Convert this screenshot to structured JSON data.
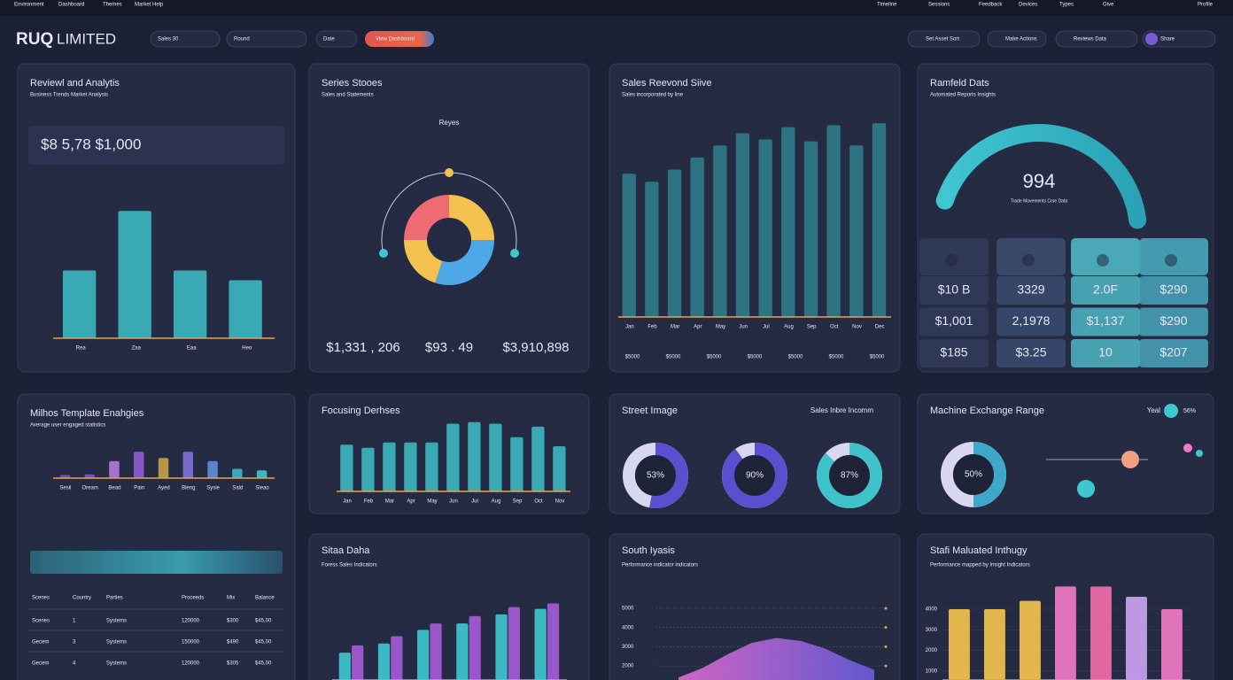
{
  "topbar": {
    "menu": [
      "Environment",
      "Dashboard",
      "Themes",
      "Market Help"
    ],
    "tools": [
      "Timeline",
      "Sessions",
      "Feedback",
      "Devices",
      "Types",
      "Give",
      "Profile"
    ]
  },
  "header": {
    "logo_mark": "RUQ",
    "logo_text": "LIMITED",
    "filters": [
      "Sales 30",
      "Round",
      "Date"
    ],
    "button": "View Dashboard",
    "actions": [
      "Set Asset Sort",
      "Make Actions",
      "Reviews Data",
      "Share"
    ]
  },
  "panels": [
    {
      "title": "Reviewl and Analytis",
      "subtitle": "Business Trends Market Analysis",
      "kpi": "$8 5,78 $1,000",
      "chart": {
        "type": "bar",
        "categories": [
          "Rea",
          "Zaa",
          "Eaa",
          "Heo"
        ],
        "values": [
          42,
          79,
          42,
          36
        ],
        "ylim": [
          0,
          100
        ],
        "color": "#3bb4bd"
      }
    },
    {
      "title": "Series Stooes",
      "subtitle": "Sales and Statements",
      "kpis": [
        "$1,331 , 206",
        "$93 . 49",
        "$3,910,898"
      ],
      "chart": {
        "type": "donut",
        "label": "Reyes",
        "values": [
          25,
          30,
          20,
          25
        ],
        "colors": [
          "#f2c14e",
          "#4ea8e8",
          "#f2c14e",
          "#ef6b73"
        ]
      }
    },
    {
      "title": "Sales Reevond Siive",
      "subtitle": "Sales incorporated by line",
      "footer": [
        "$5000",
        "$5000",
        "$5000",
        "$5000",
        "$5000",
        "$5000",
        "$5000"
      ],
      "chart": {
        "type": "bar",
        "categories": [
          "Jan",
          "Feb",
          "Mar",
          "Apr",
          "May",
          "Jun",
          "Jul",
          "Aug",
          "Sep",
          "Oct",
          "Nov",
          "Dec"
        ],
        "values": [
          71,
          67,
          73,
          79,
          85,
          91,
          88,
          94,
          87,
          95,
          85,
          96
        ],
        "ylim": [
          0,
          100
        ],
        "color": "#2e7a88"
      }
    },
    {
      "title": "Ramfeld Dats",
      "subtitle": "Automated Reports Insights",
      "kpi": "994",
      "caption": "Trade Movements Core Data",
      "tiles": [
        "$10 B",
        "3329",
        "2.0F",
        "$290",
        "$1,001",
        "2,1978",
        "$1,137",
        "$290",
        "$185",
        "$3.25",
        "10",
        "$207"
      ]
    },
    {
      "title": "Milhos Template Enahgies",
      "subtitle": "Average user engaged statistics",
      "chart": {
        "type": "bar",
        "categories": [
          "Sesil",
          "Oream",
          "Bead",
          "Pain",
          "Ayed",
          "Bleng",
          "Sysie",
          "Sald",
          "Sleao"
        ],
        "values": [
          10,
          12,
          55,
          85,
          65,
          85,
          55,
          30,
          25
        ],
        "colors": [
          "#7a4fb8",
          "#8a4fc0",
          "#b07ad8",
          "#8f5bd1",
          "#c2a04a",
          "#7f6fd8",
          "#5b8fd6",
          "#3fb0c8",
          "#3fc6cf"
        ],
        "ylim": [
          0,
          100
        ]
      },
      "table": {
        "header": [
          "Scenes",
          "Country",
          "Parties",
          "Proceeds",
          "Mix",
          "Balance"
        ],
        "rows": [
          [
            "Scenes",
            "1",
            "Systems",
            "120000",
            "$300",
            "$45,00"
          ],
          [
            "Gecem",
            "3",
            "Systems",
            "150000",
            "$490",
            "$45,00"
          ],
          [
            "Gecem",
            "4",
            "Systems",
            "120000",
            "$305",
            "$45,00"
          ]
        ]
      }
    },
    {
      "title": "Focusing Derhses",
      "chart": {
        "type": "bar",
        "categories": [
          "Jan",
          "Feb",
          "Mar",
          "Apr",
          "May",
          "Jun",
          "Jul",
          "Aug",
          "Sep",
          "Oct",
          "Nov"
        ],
        "values": [
          62,
          58,
          65,
          65,
          65,
          90,
          92,
          90,
          72,
          86,
          60
        ],
        "ylim": [
          0,
          100
        ],
        "color": "#3bb4bd"
      }
    },
    {
      "title": "Street Image",
      "extra": "Sales Inbre Incomm",
      "chart": {
        "type": "rings",
        "values": [
          53,
          90,
          87
        ],
        "value_labels": [
          "53%",
          "90%",
          "87%"
        ],
        "colors": [
          "#5b4fcf",
          "#5b4fcf",
          "#3fc3c8"
        ]
      }
    },
    {
      "title": "Machine Exchange Range",
      "extra": "Yeal",
      "extra_value": "56%",
      "chart": {
        "type": "rings",
        "values": [
          50
        ],
        "value_labels": [
          "50%"
        ],
        "colors": [
          "#3fa8c8"
        ]
      }
    },
    {
      "title": "Sitaa Daha",
      "subtitle": "Foress Sales Indicators",
      "chart": {
        "type": "bar",
        "categories": [
          null,
          null,
          null,
          null,
          null,
          null
        ],
        "series": [
          {
            "color": "#3fc6cf",
            "values": [
              30,
              40,
              55,
              62,
              72,
              78
            ]
          },
          {
            "color": "#a45bd6",
            "values": [
              38,
              48,
              62,
              70,
              80,
              84
            ]
          }
        ],
        "ylim": [
          0,
          100
        ]
      }
    },
    {
      "title": "South Iyasis",
      "subtitle": "Performance indicator indicators",
      "chart": {
        "type": "area",
        "values": [
          1400,
          1900,
          2600,
          3200,
          3450,
          3300,
          2900,
          2300,
          1800
        ],
        "ylim": [
          1270,
          6240
        ],
        "yticks": [
          5000,
          4000,
          3000,
          2000
        ],
        "color": "#9b5de5"
      }
    },
    {
      "title": "Stafi Maluated Inthugy",
      "subtitle": "Performance mapped by Insight Indicators",
      "chart": {
        "type": "bar",
        "categories": [
          null,
          null,
          null,
          null,
          null,
          null,
          null
        ],
        "values": [
          4000,
          4000,
          4400,
          5100,
          5100,
          4600,
          4000
        ],
        "colors": [
          "#f2c14e",
          "#f2c14e",
          "#f2c14e",
          "#f07bc6",
          "#f06aa8",
          "#c9a2f0",
          "#f07bc6"
        ],
        "ylim": [
          570,
          5200
        ],
        "yticks": [
          4000,
          3000,
          2000,
          1000
        ]
      }
    }
  ]
}
